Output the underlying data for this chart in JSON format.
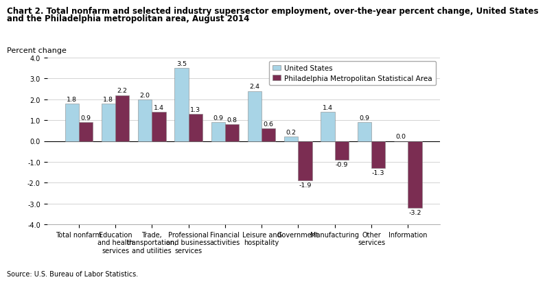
{
  "title_line1": "Chart 2. Total nonfarm and selected industry supersector employment, over-the-year percent change, United States",
  "title_line2": "and the Philadelphia metropolitan area, August 2014",
  "ylabel": "Percent change",
  "source": "Source: U.S. Bureau of Labor Statistics.",
  "categories": [
    "Total nonfarm",
    "Education\nand health\nservices",
    "Trade,\ntransportation,\nand utilities",
    "Professional\nand business\nservices",
    "Financial\nactivities",
    "Leisure and\nhospitality",
    "Government",
    "Manufacturing",
    "Other\nservices",
    "Information"
  ],
  "us_values": [
    1.8,
    1.8,
    2.0,
    3.5,
    0.9,
    2.4,
    0.2,
    1.4,
    0.9,
    0.0
  ],
  "philly_values": [
    0.9,
    2.2,
    1.4,
    1.3,
    0.8,
    0.6,
    -1.9,
    -0.9,
    -1.3,
    -3.2
  ],
  "us_color": "#a8d4e6",
  "philly_color": "#7b2d52",
  "us_label": "United States",
  "philly_label": "Philadelphia Metropolitan Statistical Area",
  "ylim": [
    -4.0,
    4.0
  ],
  "yticks": [
    -4.0,
    -3.0,
    -2.0,
    -1.0,
    0.0,
    1.0,
    2.0,
    3.0,
    4.0
  ],
  "ytick_labels": [
    "-4.0",
    "-3.0",
    "-2.0",
    "-1.0",
    "0.0",
    "1.0",
    "2.0",
    "3.0",
    "4.0"
  ],
  "bar_width": 0.38,
  "title_fontsize": 8.5,
  "tick_fontsize": 7.0,
  "legend_fontsize": 7.5,
  "value_fontsize": 6.8,
  "ylabel_fontsize": 8.0
}
